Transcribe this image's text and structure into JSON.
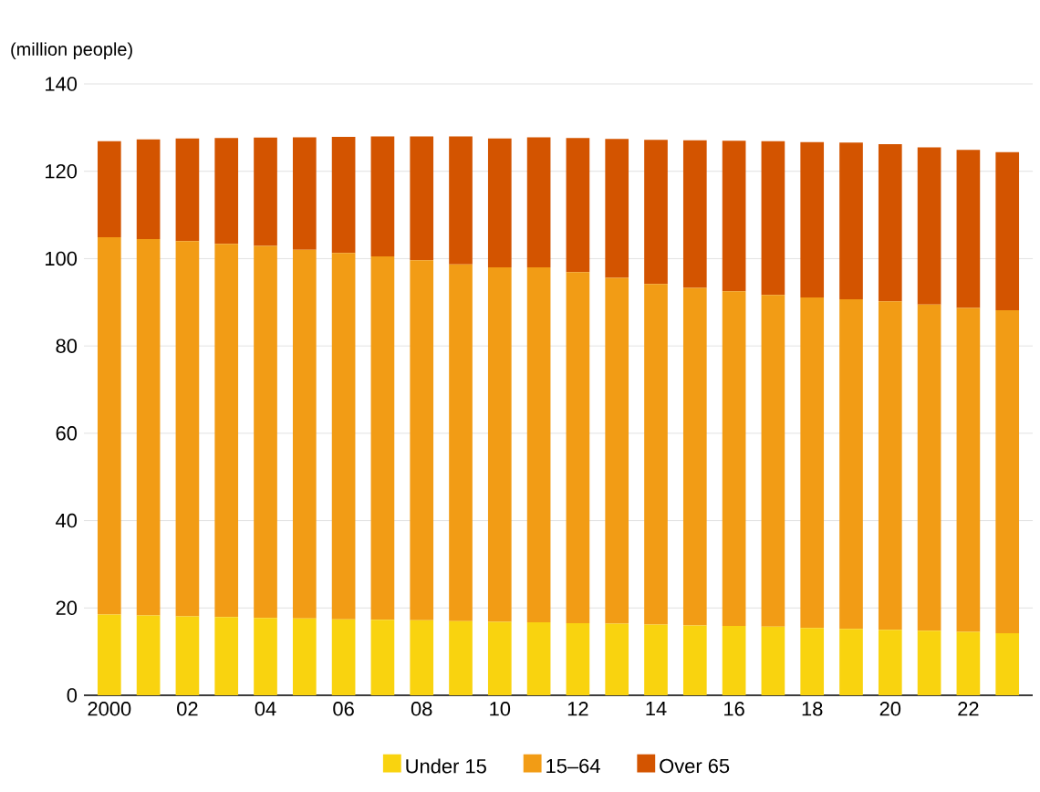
{
  "chart_data": {
    "type": "bar",
    "stacked": true,
    "ylabel": "(million people)",
    "categories": [
      "2000",
      null,
      "02",
      null,
      "04",
      null,
      "06",
      null,
      "08",
      null,
      "10",
      null,
      "12",
      null,
      "14",
      null,
      "16",
      null,
      "18",
      null,
      "20",
      null,
      "22",
      null
    ],
    "series": [
      {
        "name": "Under 15",
        "color": "#f9d30f",
        "values": [
          18.5,
          18.3,
          18.1,
          17.9,
          17.7,
          17.6,
          17.4,
          17.3,
          17.2,
          17.0,
          16.8,
          16.7,
          16.5,
          16.4,
          16.2,
          16.0,
          15.9,
          15.7,
          15.4,
          15.2,
          15.0,
          14.8,
          14.5,
          14.2
        ]
      },
      {
        "name": "15–64",
        "color": "#f29c15",
        "values": [
          86.4,
          86.2,
          85.9,
          85.5,
          85.2,
          84.4,
          83.9,
          83.2,
          82.4,
          81.7,
          81.2,
          81.3,
          80.4,
          79.2,
          78.0,
          77.3,
          76.6,
          76.0,
          75.7,
          75.5,
          75.2,
          74.7,
          74.2,
          74.0
        ]
      },
      {
        "name": "Over 65",
        "color": "#d35400",
        "values": [
          22.0,
          22.8,
          23.5,
          24.2,
          24.8,
          25.8,
          26.6,
          27.5,
          28.4,
          29.3,
          29.5,
          29.8,
          30.7,
          31.8,
          33.0,
          33.8,
          34.5,
          35.2,
          35.6,
          35.9,
          36.0,
          36.0,
          36.2,
          36.2
        ]
      }
    ],
    "ylim": [
      0,
      140
    ],
    "yticks": [
      0,
      20,
      40,
      60,
      80,
      100,
      120,
      140
    ],
    "grid": "y",
    "legend": "bottom"
  }
}
